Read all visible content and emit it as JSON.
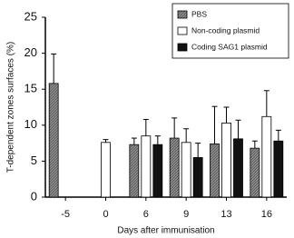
{
  "chart_data": {
    "type": "bar",
    "y_label": "T-dependent zones surfaces (%)",
    "x_label": "Days after immunisation",
    "categories": [
      "-5",
      "0",
      "6",
      "9",
      "13",
      "16"
    ],
    "series": [
      {
        "name": "PBS",
        "color": "#8a8a8a",
        "values": [
          15.8,
          null,
          7.3,
          8.2,
          7.4,
          6.8
        ],
        "errors": [
          4.1,
          null,
          0.9,
          2.8,
          5.2,
          1.0
        ]
      },
      {
        "name": "Non-coding plasmid",
        "color": "#ffffff",
        "values": [
          null,
          7.6,
          8.5,
          7.6,
          10.3,
          11.2
        ],
        "errors": [
          null,
          0.4,
          2.3,
          1.9,
          2.2,
          3.6
        ]
      },
      {
        "name": "Coding SAG1 plasmid",
        "color": "#111111",
        "values": [
          null,
          null,
          7.3,
          5.5,
          8.1,
          7.8
        ],
        "errors": [
          null,
          null,
          1.2,
          2.0,
          2.6,
          1.5
        ]
      }
    ],
    "ylim": [
      0,
      25
    ],
    "yticks": [
      0,
      5,
      10,
      15,
      20,
      25
    ]
  }
}
